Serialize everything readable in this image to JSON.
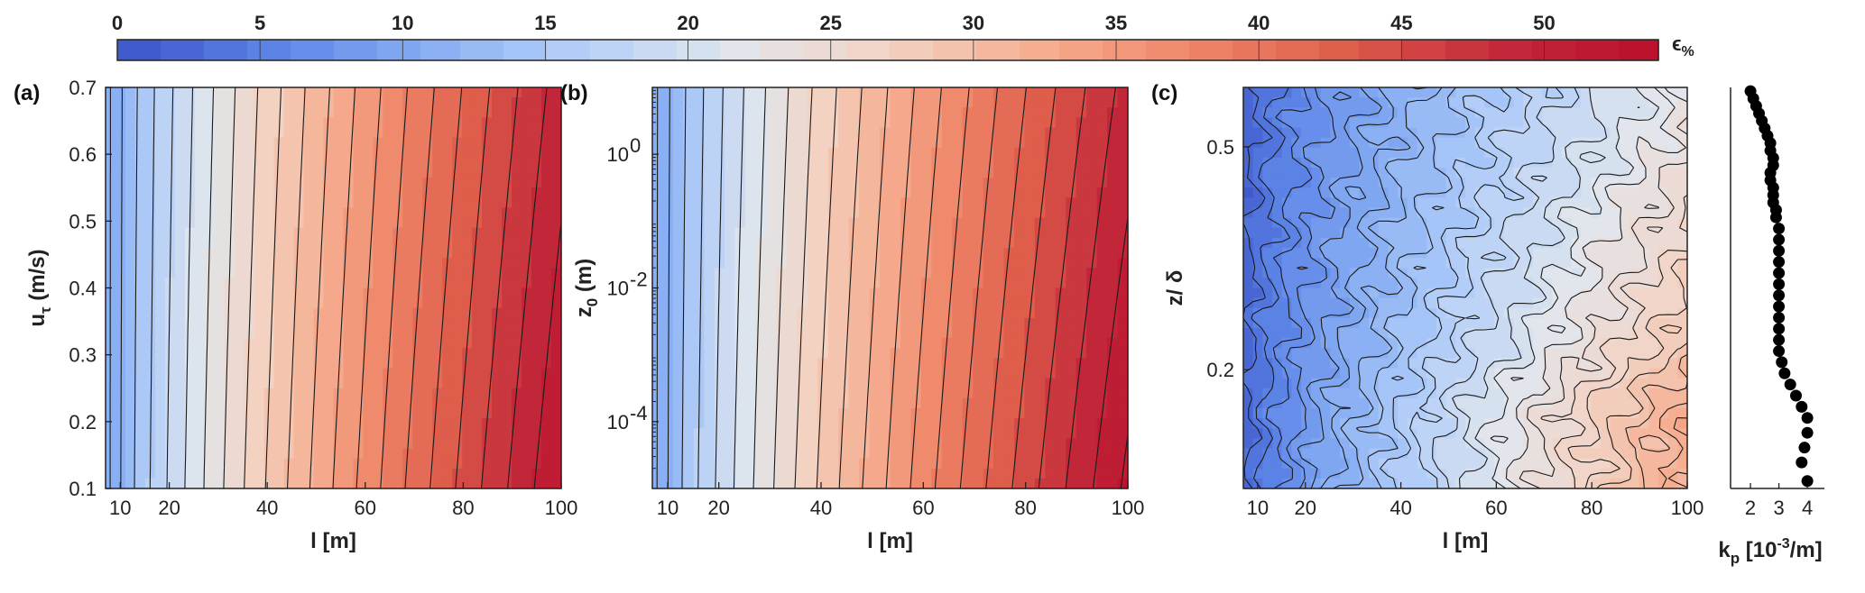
{
  "colorbar": {
    "ticks": [
      "0",
      "5",
      "10",
      "15",
      "20",
      "25",
      "30",
      "35",
      "40",
      "45",
      "50"
    ],
    "range": [
      0,
      54
    ],
    "label": "ϵ",
    "label_sub": "%",
    "colormap": [
      "#3a53c8",
      "#5c83e6",
      "#87aef4",
      "#b6d0f8",
      "#e1e6ec",
      "#f3d2c2",
      "#f6ad8f",
      "#ee8467",
      "#dd5b4a",
      "#c2283a",
      "#ba0f2c"
    ]
  },
  "chart_data": [
    {
      "type": "contour",
      "panel_label": "(a)",
      "xlabel": "l [m]",
      "ylabel": "u",
      "ylabel_sub": "τ",
      "ylabel_tail": " (m/s)",
      "xlim": [
        7,
        100
      ],
      "ylim": [
        0.1,
        0.7
      ],
      "xticks": [
        10,
        20,
        40,
        60,
        80,
        100
      ],
      "xtick_labels": [
        "10",
        "20",
        "40",
        "60",
        "80",
        "100"
      ],
      "yticks": [
        0.1,
        0.2,
        0.3,
        0.4,
        0.5,
        0.6,
        0.7
      ],
      "ytick_labels": [
        "0.1",
        "0.2",
        "0.3",
        "0.4",
        "0.5",
        "0.6",
        "0.7"
      ],
      "level_step": 2,
      "contour_levels_x_at_ymax": [
        8,
        11,
        14,
        17,
        20,
        24,
        28,
        33,
        38,
        43,
        49,
        55,
        62,
        70,
        79,
        89,
        100
      ],
      "field_range": [
        9,
        52
      ]
    },
    {
      "type": "contour",
      "panel_label": "(b)",
      "xlabel": "l [m]",
      "ylabel": "z",
      "ylabel_sub": "0",
      "ylabel_tail": " (m)",
      "yscale": "log",
      "xlim": [
        7,
        100
      ],
      "ylim": [
        1e-05,
        10
      ],
      "xticks": [
        10,
        20,
        40,
        60,
        80,
        100
      ],
      "xtick_labels": [
        "10",
        "20",
        "40",
        "60",
        "80",
        "100"
      ],
      "yticks": [
        0.0001,
        0.01,
        1
      ],
      "ytick_labels": [
        "10",
        "10",
        "10"
      ],
      "ytick_exponents": [
        "-4",
        "-2",
        "0"
      ],
      "level_step": 2,
      "field_range": [
        9,
        53
      ]
    },
    {
      "type": "contour",
      "panel_label": "(c)",
      "xlabel": "l [m]",
      "ylabel": "z/ δ",
      "xlim": [
        7,
        100
      ],
      "ylim": [
        0.04,
        0.58
      ],
      "xticks": [
        10,
        20,
        40,
        60,
        80,
        100
      ],
      "xtick_labels": [
        "10",
        "20",
        "40",
        "60",
        "80",
        "100"
      ],
      "yticks": [
        0.2,
        0.5
      ],
      "ytick_labels": [
        "0.2",
        "0.5"
      ],
      "level_step": 1.5,
      "field_range": [
        2,
        35
      ]
    },
    {
      "type": "scatter",
      "xlabel": "k",
      "xlabel_sub": "p",
      "xlabel_tail": " [10",
      "xlabel_sup": "-3",
      "xlabel_end": "/m]",
      "xlim": [
        1.3,
        4.6
      ],
      "ylim": [
        0.04,
        0.58
      ],
      "xticks": [
        2,
        3,
        4
      ],
      "xtick_labels": [
        "2",
        "3",
        "4"
      ],
      "x": [
        2.0,
        2.1,
        2.2,
        2.3,
        2.4,
        2.5,
        2.6,
        2.7,
        2.7,
        2.8,
        2.8,
        2.7,
        2.7,
        2.8,
        2.8,
        2.8,
        2.9,
        2.9,
        3.0,
        3.0,
        3.0,
        3.0,
        3.0,
        3.0,
        3.0,
        3.0,
        3.0,
        3.0,
        3.0,
        3.0,
        3.1,
        3.2,
        3.4,
        3.6,
        3.8,
        4.0,
        4.0,
        3.9,
        3.8,
        4.0
      ],
      "y": [
        0.575,
        0.565,
        0.555,
        0.545,
        0.535,
        0.525,
        0.515,
        0.505,
        0.495,
        0.485,
        0.475,
        0.465,
        0.455,
        0.445,
        0.435,
        0.425,
        0.415,
        0.405,
        0.39,
        0.375,
        0.36,
        0.345,
        0.33,
        0.315,
        0.3,
        0.285,
        0.27,
        0.255,
        0.24,
        0.225,
        0.21,
        0.195,
        0.18,
        0.165,
        0.15,
        0.135,
        0.115,
        0.095,
        0.075,
        0.05
      ]
    }
  ]
}
